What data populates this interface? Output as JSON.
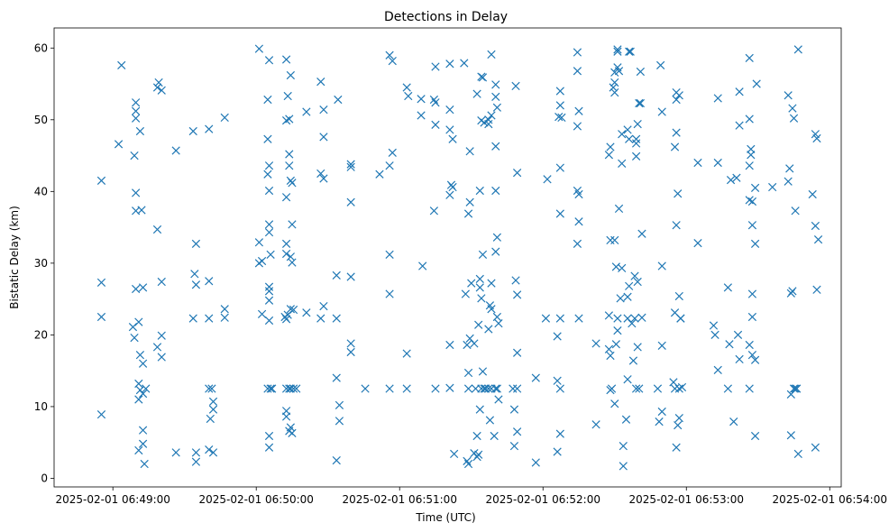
{
  "chart_data": {
    "type": "scatter",
    "title": "Detections in Delay",
    "xlabel": "Time (UTC)",
    "ylabel": "Bistatic Delay (km)",
    "marker": "x",
    "color": "#1f77b4",
    "x_unit": "minutes after 2025-02-01 06:48:00",
    "xlim": [
      0.59,
      6.08
    ],
    "ylim": [
      -1.2,
      62.8
    ],
    "x_ticks": [
      {
        "value": 1,
        "label": "2025-02-01 06:49:00"
      },
      {
        "value": 2,
        "label": "2025-02-01 06:50:00"
      },
      {
        "value": 3,
        "label": "2025-02-01 06:51:00"
      },
      {
        "value": 4,
        "label": "2025-02-01 06:52:00"
      },
      {
        "value": 5,
        "label": "2025-02-01 06:53:00"
      },
      {
        "value": 6,
        "label": "2025-02-01 06:54:00"
      }
    ],
    "y_ticks": [
      {
        "value": 0,
        "label": "0"
      },
      {
        "value": 10,
        "label": "10"
      },
      {
        "value": 20,
        "label": "20"
      },
      {
        "value": 30,
        "label": "30"
      },
      {
        "value": 40,
        "label": "40"
      },
      {
        "value": 50,
        "label": "50"
      },
      {
        "value": 60,
        "label": "60"
      }
    ],
    "points": [
      [
        0.92,
        41.5
      ],
      [
        0.92,
        27.3
      ],
      [
        0.92,
        22.5
      ],
      [
        0.92,
        8.9
      ],
      [
        1.04,
        46.6
      ],
      [
        1.06,
        57.6
      ],
      [
        1.15,
        45
      ],
      [
        1.16,
        52.4
      ],
      [
        1.16,
        51.2
      ],
      [
        1.16,
        50.2
      ],
      [
        1.19,
        48.4
      ],
      [
        1.16,
        39.8
      ],
      [
        1.16,
        37.3
      ],
      [
        1.2,
        37.4
      ],
      [
        1.16,
        26.4
      ],
      [
        1.21,
        26.6
      ],
      [
        1.14,
        21.1
      ],
      [
        1.15,
        19.6
      ],
      [
        1.18,
        21.8
      ],
      [
        1.19,
        17.2
      ],
      [
        1.21,
        16
      ],
      [
        1.18,
        13.2
      ],
      [
        1.19,
        12.3
      ],
      [
        1.23,
        12.5
      ],
      [
        1.21,
        11.8
      ],
      [
        1.18,
        11
      ],
      [
        1.21,
        6.7
      ],
      [
        1.21,
        4.8
      ],
      [
        1.18,
        3.9
      ],
      [
        1.22,
        2
      ],
      [
        1.32,
        55.2
      ],
      [
        1.31,
        54.5
      ],
      [
        1.34,
        54.1
      ],
      [
        1.31,
        34.7
      ],
      [
        1.34,
        27.4
      ],
      [
        1.34,
        19.9
      ],
      [
        1.31,
        18.3
      ],
      [
        1.34,
        16.9
      ],
      [
        1.44,
        45.7
      ],
      [
        1.44,
        3.6
      ],
      [
        1.56,
        48.4
      ],
      [
        1.58,
        32.7
      ],
      [
        1.57,
        28.5
      ],
      [
        1.58,
        27
      ],
      [
        1.56,
        22.3
      ],
      [
        1.58,
        3.6
      ],
      [
        1.58,
        2.3
      ],
      [
        1.67,
        48.7
      ],
      [
        1.67,
        27.5
      ],
      [
        1.67,
        22.3
      ],
      [
        1.67,
        12.5
      ],
      [
        1.68,
        8.3
      ],
      [
        1.69,
        12.5
      ],
      [
        1.7,
        10.7
      ],
      [
        1.7,
        9.6
      ],
      [
        1.67,
        4
      ],
      [
        1.7,
        3.6
      ],
      [
        1.78,
        50.3
      ],
      [
        1.78,
        23.6
      ],
      [
        1.78,
        22.4
      ],
      [
        2.02,
        59.9
      ],
      [
        2.02,
        32.9
      ],
      [
        2.02,
        30
      ],
      [
        2.04,
        30.3
      ],
      [
        2.04,
        22.9
      ],
      [
        2.09,
        58.3
      ],
      [
        2.08,
        52.8
      ],
      [
        2.08,
        47.3
      ],
      [
        2.09,
        43.6
      ],
      [
        2.08,
        42.4
      ],
      [
        2.09,
        40.1
      ],
      [
        2.09,
        35.4
      ],
      [
        2.09,
        34.3
      ],
      [
        2.1,
        31.2
      ],
      [
        2.09,
        26.7
      ],
      [
        2.09,
        26.1
      ],
      [
        2.09,
        24.8
      ],
      [
        2.09,
        22
      ],
      [
        2.08,
        12.5
      ],
      [
        2.1,
        12.5
      ],
      [
        2.11,
        12.5
      ],
      [
        2.09,
        5.9
      ],
      [
        2.09,
        4.3
      ],
      [
        2.21,
        58.4
      ],
      [
        2.22,
        53.3
      ],
      [
        2.21,
        49.9
      ],
      [
        2.23,
        50.1
      ],
      [
        2.24,
        56.2
      ],
      [
        2.23,
        45.2
      ],
      [
        2.23,
        43.6
      ],
      [
        2.24,
        41.5
      ],
      [
        2.25,
        41.2
      ],
      [
        2.21,
        39.2
      ],
      [
        2.25,
        35.4
      ],
      [
        2.21,
        32.7
      ],
      [
        2.21,
        31.3
      ],
      [
        2.24,
        30.9
      ],
      [
        2.25,
        30.1
      ],
      [
        2.24,
        23.6
      ],
      [
        2.26,
        23.5
      ],
      [
        2.2,
        22.5
      ],
      [
        2.21,
        22.2
      ],
      [
        2.22,
        22.8
      ],
      [
        2.21,
        12.5
      ],
      [
        2.23,
        12.5
      ],
      [
        2.24,
        12.5
      ],
      [
        2.26,
        12.5
      ],
      [
        2.28,
        12.5
      ],
      [
        2.21,
        9.4
      ],
      [
        2.21,
        8.6
      ],
      [
        2.24,
        7.1
      ],
      [
        2.25,
        6.3
      ],
      [
        2.23,
        6.6
      ],
      [
        2.35,
        51.1
      ],
      [
        2.35,
        23.1
      ],
      [
        2.45,
        55.3
      ],
      [
        2.47,
        51.4
      ],
      [
        2.47,
        47.6
      ],
      [
        2.45,
        42.5
      ],
      [
        2.47,
        41.8
      ],
      [
        2.47,
        24
      ],
      [
        2.45,
        22.3
      ],
      [
        2.57,
        52.8
      ],
      [
        2.56,
        28.3
      ],
      [
        2.56,
        14
      ],
      [
        2.58,
        10.2
      ],
      [
        2.58,
        8
      ],
      [
        2.56,
        22.3
      ],
      [
        2.56,
        2.5
      ],
      [
        2.66,
        43.8
      ],
      [
        2.66,
        43.4
      ],
      [
        2.66,
        38.5
      ],
      [
        2.66,
        28.1
      ],
      [
        2.66,
        18.8
      ],
      [
        2.66,
        17.6
      ],
      [
        2.76,
        12.5
      ],
      [
        2.86,
        42.4
      ],
      [
        2.93,
        59
      ],
      [
        2.93,
        43.6
      ],
      [
        2.93,
        31.2
      ],
      [
        2.93,
        25.7
      ],
      [
        2.93,
        12.5
      ],
      [
        2.95,
        58.2
      ],
      [
        2.95,
        45.4
      ],
      [
        3.05,
        54.5
      ],
      [
        3.06,
        53.3
      ],
      [
        3.05,
        17.4
      ],
      [
        3.05,
        12.5
      ],
      [
        3.15,
        50.6
      ],
      [
        3.15,
        52.9
      ],
      [
        3.16,
        29.6
      ],
      [
        3.25,
        57.4
      ],
      [
        3.25,
        52.4
      ],
      [
        3.24,
        52.8
      ],
      [
        3.25,
        49.3
      ],
      [
        3.24,
        37.3
      ],
      [
        3.25,
        12.5
      ],
      [
        3.35,
        57.8
      ],
      [
        3.35,
        51.4
      ],
      [
        3.35,
        48.6
      ],
      [
        3.37,
        47.3
      ],
      [
        3.36,
        40.9
      ],
      [
        3.37,
        40.6
      ],
      [
        3.35,
        39.5
      ],
      [
        3.35,
        18.6
      ],
      [
        3.35,
        12.6
      ],
      [
        3.38,
        3.4
      ],
      [
        3.45,
        57.9
      ],
      [
        3.46,
        25.7
      ],
      [
        3.47,
        18.6
      ],
      [
        3.48,
        14.7
      ],
      [
        3.48,
        12.5
      ],
      [
        3.47,
        2.4
      ],
      [
        3.48,
        2
      ],
      [
        3.49,
        45.6
      ],
      [
        3.49,
        38.5
      ],
      [
        3.48,
        36.9
      ],
      [
        3.5,
        27.2
      ],
      [
        3.49,
        19.5
      ],
      [
        3.52,
        18.8
      ],
      [
        3.53,
        12.5
      ],
      [
        3.52,
        3.5
      ],
      [
        3.55,
        3.3
      ],
      [
        3.54,
        53.6
      ],
      [
        3.57,
        56
      ],
      [
        3.58,
        55.9
      ],
      [
        3.59,
        49.6
      ],
      [
        3.57,
        49.9
      ],
      [
        3.56,
        40.1
      ],
      [
        3.56,
        27.8
      ],
      [
        3.56,
        26.6
      ],
      [
        3.57,
        25.1
      ],
      [
        3.58,
        31.2
      ],
      [
        3.55,
        21.4
      ],
      [
        3.58,
        14.9
      ],
      [
        3.59,
        12.5
      ],
      [
        3.56,
        9.6
      ],
      [
        3.57,
        12.5
      ],
      [
        3.6,
        12.5
      ],
      [
        3.62,
        50
      ],
      [
        3.62,
        49.4
      ],
      [
        3.64,
        59.1
      ],
      [
        3.64,
        50.6
      ],
      [
        3.64,
        27.2
      ],
      [
        3.63,
        24.1
      ],
      [
        3.64,
        23.6
      ],
      [
        3.62,
        20.8
      ],
      [
        3.62,
        12.5
      ],
      [
        3.64,
        12.5
      ],
      [
        3.63,
        8.1
      ],
      [
        3.66,
        5.9
      ],
      [
        3.54,
        5.9
      ],
      [
        3.54,
        3
      ],
      [
        3.67,
        54.9
      ],
      [
        3.67,
        53.2
      ],
      [
        3.68,
        51.7
      ],
      [
        3.67,
        46.3
      ],
      [
        3.67,
        40.1
      ],
      [
        3.68,
        33.6
      ],
      [
        3.67,
        31.6
      ],
      [
        3.68,
        22.5
      ],
      [
        3.69,
        21.6
      ],
      [
        3.68,
        12.5
      ],
      [
        3.67,
        12.5
      ],
      [
        3.69,
        11
      ],
      [
        3.81,
        54.7
      ],
      [
        3.82,
        42.6
      ],
      [
        3.81,
        27.6
      ],
      [
        3.82,
        25.6
      ],
      [
        3.82,
        17.5
      ],
      [
        3.79,
        12.5
      ],
      [
        3.82,
        12.5
      ],
      [
        3.8,
        9.6
      ],
      [
        3.82,
        6.5
      ],
      [
        3.8,
        4.5
      ],
      [
        3.95,
        14
      ],
      [
        3.95,
        2.2
      ],
      [
        4.03,
        41.7
      ],
      [
        4.02,
        22.3
      ],
      [
        4.12,
        54
      ],
      [
        4.12,
        52
      ],
      [
        4.11,
        50.4
      ],
      [
        4.13,
        50.3
      ],
      [
        4.12,
        43.3
      ],
      [
        4.12,
        36.9
      ],
      [
        4.12,
        22.3
      ],
      [
        4.1,
        19.8
      ],
      [
        4.1,
        13.6
      ],
      [
        4.12,
        12.5
      ],
      [
        4.12,
        6.2
      ],
      [
        4.1,
        3.7
      ],
      [
        4.24,
        59.4
      ],
      [
        4.24,
        56.8
      ],
      [
        4.25,
        51.2
      ],
      [
        4.24,
        49.1
      ],
      [
        4.24,
        40.1
      ],
      [
        4.25,
        39.6
      ],
      [
        4.25,
        35.8
      ],
      [
        4.24,
        32.7
      ],
      [
        4.25,
        22.3
      ],
      [
        4.37,
        18.8
      ],
      [
        4.37,
        7.5
      ],
      [
        4.47,
        46.2
      ],
      [
        4.46,
        45.1
      ],
      [
        4.47,
        33.2
      ],
      [
        4.46,
        22.7
      ],
      [
        4.46,
        18
      ],
      [
        4.47,
        17.1
      ],
      [
        4.48,
        12.5
      ],
      [
        4.47,
        12.3
      ],
      [
        4.5,
        56.6
      ],
      [
        4.5,
        55.2
      ],
      [
        4.49,
        54.5
      ],
      [
        4.5,
        53.8
      ],
      [
        4.52,
        57.3
      ],
      [
        4.5,
        33.2
      ],
      [
        4.51,
        29.5
      ],
      [
        4.52,
        22.3
      ],
      [
        4.51,
        18.7
      ],
      [
        4.5,
        10.4
      ],
      [
        4.52,
        59.8
      ],
      [
        4.52,
        59.5
      ],
      [
        4.53,
        56.8
      ],
      [
        4.55,
        48
      ],
      [
        4.55,
        43.9
      ],
      [
        4.53,
        37.6
      ],
      [
        4.55,
        29.3
      ],
      [
        4.54,
        25.1
      ],
      [
        4.52,
        20.6
      ],
      [
        4.56,
        4.5
      ],
      [
        4.6,
        59.5
      ],
      [
        4.59,
        48.6
      ],
      [
        4.6,
        47.3
      ],
      [
        4.6,
        26.8
      ],
      [
        4.59,
        25.3
      ],
      [
        4.59,
        22.3
      ],
      [
        4.59,
        13.8
      ],
      [
        4.58,
        8.2
      ],
      [
        4.56,
        1.7
      ],
      [
        4.61,
        59.5
      ],
      [
        4.62,
        21.6
      ],
      [
        4.63,
        16.4
      ],
      [
        4.64,
        28.2
      ],
      [
        4.64,
        22.3
      ],
      [
        4.65,
        12.5
      ],
      [
        4.65,
        47.3
      ],
      [
        4.65,
        46.7
      ],
      [
        4.65,
        44.9
      ],
      [
        4.66,
        49.4
      ],
      [
        4.67,
        52.3
      ],
      [
        4.68,
        52.3
      ],
      [
        4.66,
        27.4
      ],
      [
        4.66,
        18.3
      ],
      [
        4.67,
        12.5
      ],
      [
        4.68,
        56.7
      ],
      [
        4.69,
        34.1
      ],
      [
        4.69,
        22.4
      ],
      [
        4.82,
        57.6
      ],
      [
        4.83,
        51.1
      ],
      [
        4.83,
        29.6
      ],
      [
        4.83,
        18.5
      ],
      [
        4.8,
        12.5
      ],
      [
        4.83,
        9.3
      ],
      [
        4.81,
        7.9
      ],
      [
        4.92,
        46.2
      ],
      [
        4.91,
        13.4
      ],
      [
        4.92,
        12.5
      ],
      [
        4.92,
        23.1
      ],
      [
        4.93,
        53.8
      ],
      [
        4.93,
        52.8
      ],
      [
        4.93,
        48.2
      ],
      [
        4.94,
        39.7
      ],
      [
        4.93,
        35.3
      ],
      [
        4.95,
        25.4
      ],
      [
        4.96,
        22.3
      ],
      [
        4.96,
        22.3
      ],
      [
        4.95,
        12.5
      ],
      [
        4.95,
        8.4
      ],
      [
        4.94,
        7.4
      ],
      [
        4.93,
        4.3
      ],
      [
        4.95,
        53.4
      ],
      [
        4.97,
        12.7
      ],
      [
        5.08,
        44
      ],
      [
        5.08,
        32.8
      ],
      [
        5.22,
        53
      ],
      [
        5.22,
        44
      ],
      [
        5.19,
        21.3
      ],
      [
        5.2,
        20
      ],
      [
        5.22,
        15.1
      ],
      [
        5.29,
        26.6
      ],
      [
        5.31,
        41.6
      ],
      [
        5.35,
        41.9
      ],
      [
        5.37,
        53.9
      ],
      [
        5.37,
        49.2
      ],
      [
        5.36,
        20
      ],
      [
        5.37,
        16.6
      ],
      [
        5.33,
        7.9
      ],
      [
        5.29,
        12.5
      ],
      [
        5.3,
        18.7
      ],
      [
        5.44,
        58.6
      ],
      [
        5.44,
        50.1
      ],
      [
        5.44,
        43.6
      ],
      [
        5.44,
        38.8
      ],
      [
        5.44,
        12.5
      ],
      [
        5.44,
        18.6
      ],
      [
        5.45,
        45.9
      ],
      [
        5.45,
        45.1
      ],
      [
        5.46,
        38.6
      ],
      [
        5.46,
        35.3
      ],
      [
        5.46,
        25.7
      ],
      [
        5.46,
        22.5
      ],
      [
        5.46,
        17.2
      ],
      [
        5.49,
        55
      ],
      [
        5.48,
        40.5
      ],
      [
        5.48,
        32.7
      ],
      [
        5.48,
        16.5
      ],
      [
        5.48,
        5.9
      ],
      [
        5.6,
        40.6
      ],
      [
        5.71,
        53.4
      ],
      [
        5.71,
        41.4
      ],
      [
        5.72,
        43.2
      ],
      [
        5.74,
        51.6
      ],
      [
        5.75,
        50.2
      ],
      [
        5.76,
        37.3
      ],
      [
        5.73,
        25.8
      ],
      [
        5.74,
        26.1
      ],
      [
        5.75,
        12.5
      ],
      [
        5.76,
        12.5
      ],
      [
        5.73,
        11.7
      ],
      [
        5.73,
        6
      ],
      [
        5.77,
        12.5
      ],
      [
        5.78,
        59.8
      ],
      [
        5.78,
        3.4
      ],
      [
        5.88,
        39.6
      ],
      [
        5.9,
        48
      ],
      [
        5.91,
        47.4
      ],
      [
        5.9,
        35.2
      ],
      [
        5.92,
        33.3
      ],
      [
        5.91,
        26.3
      ],
      [
        5.9,
        4.3
      ]
    ]
  }
}
